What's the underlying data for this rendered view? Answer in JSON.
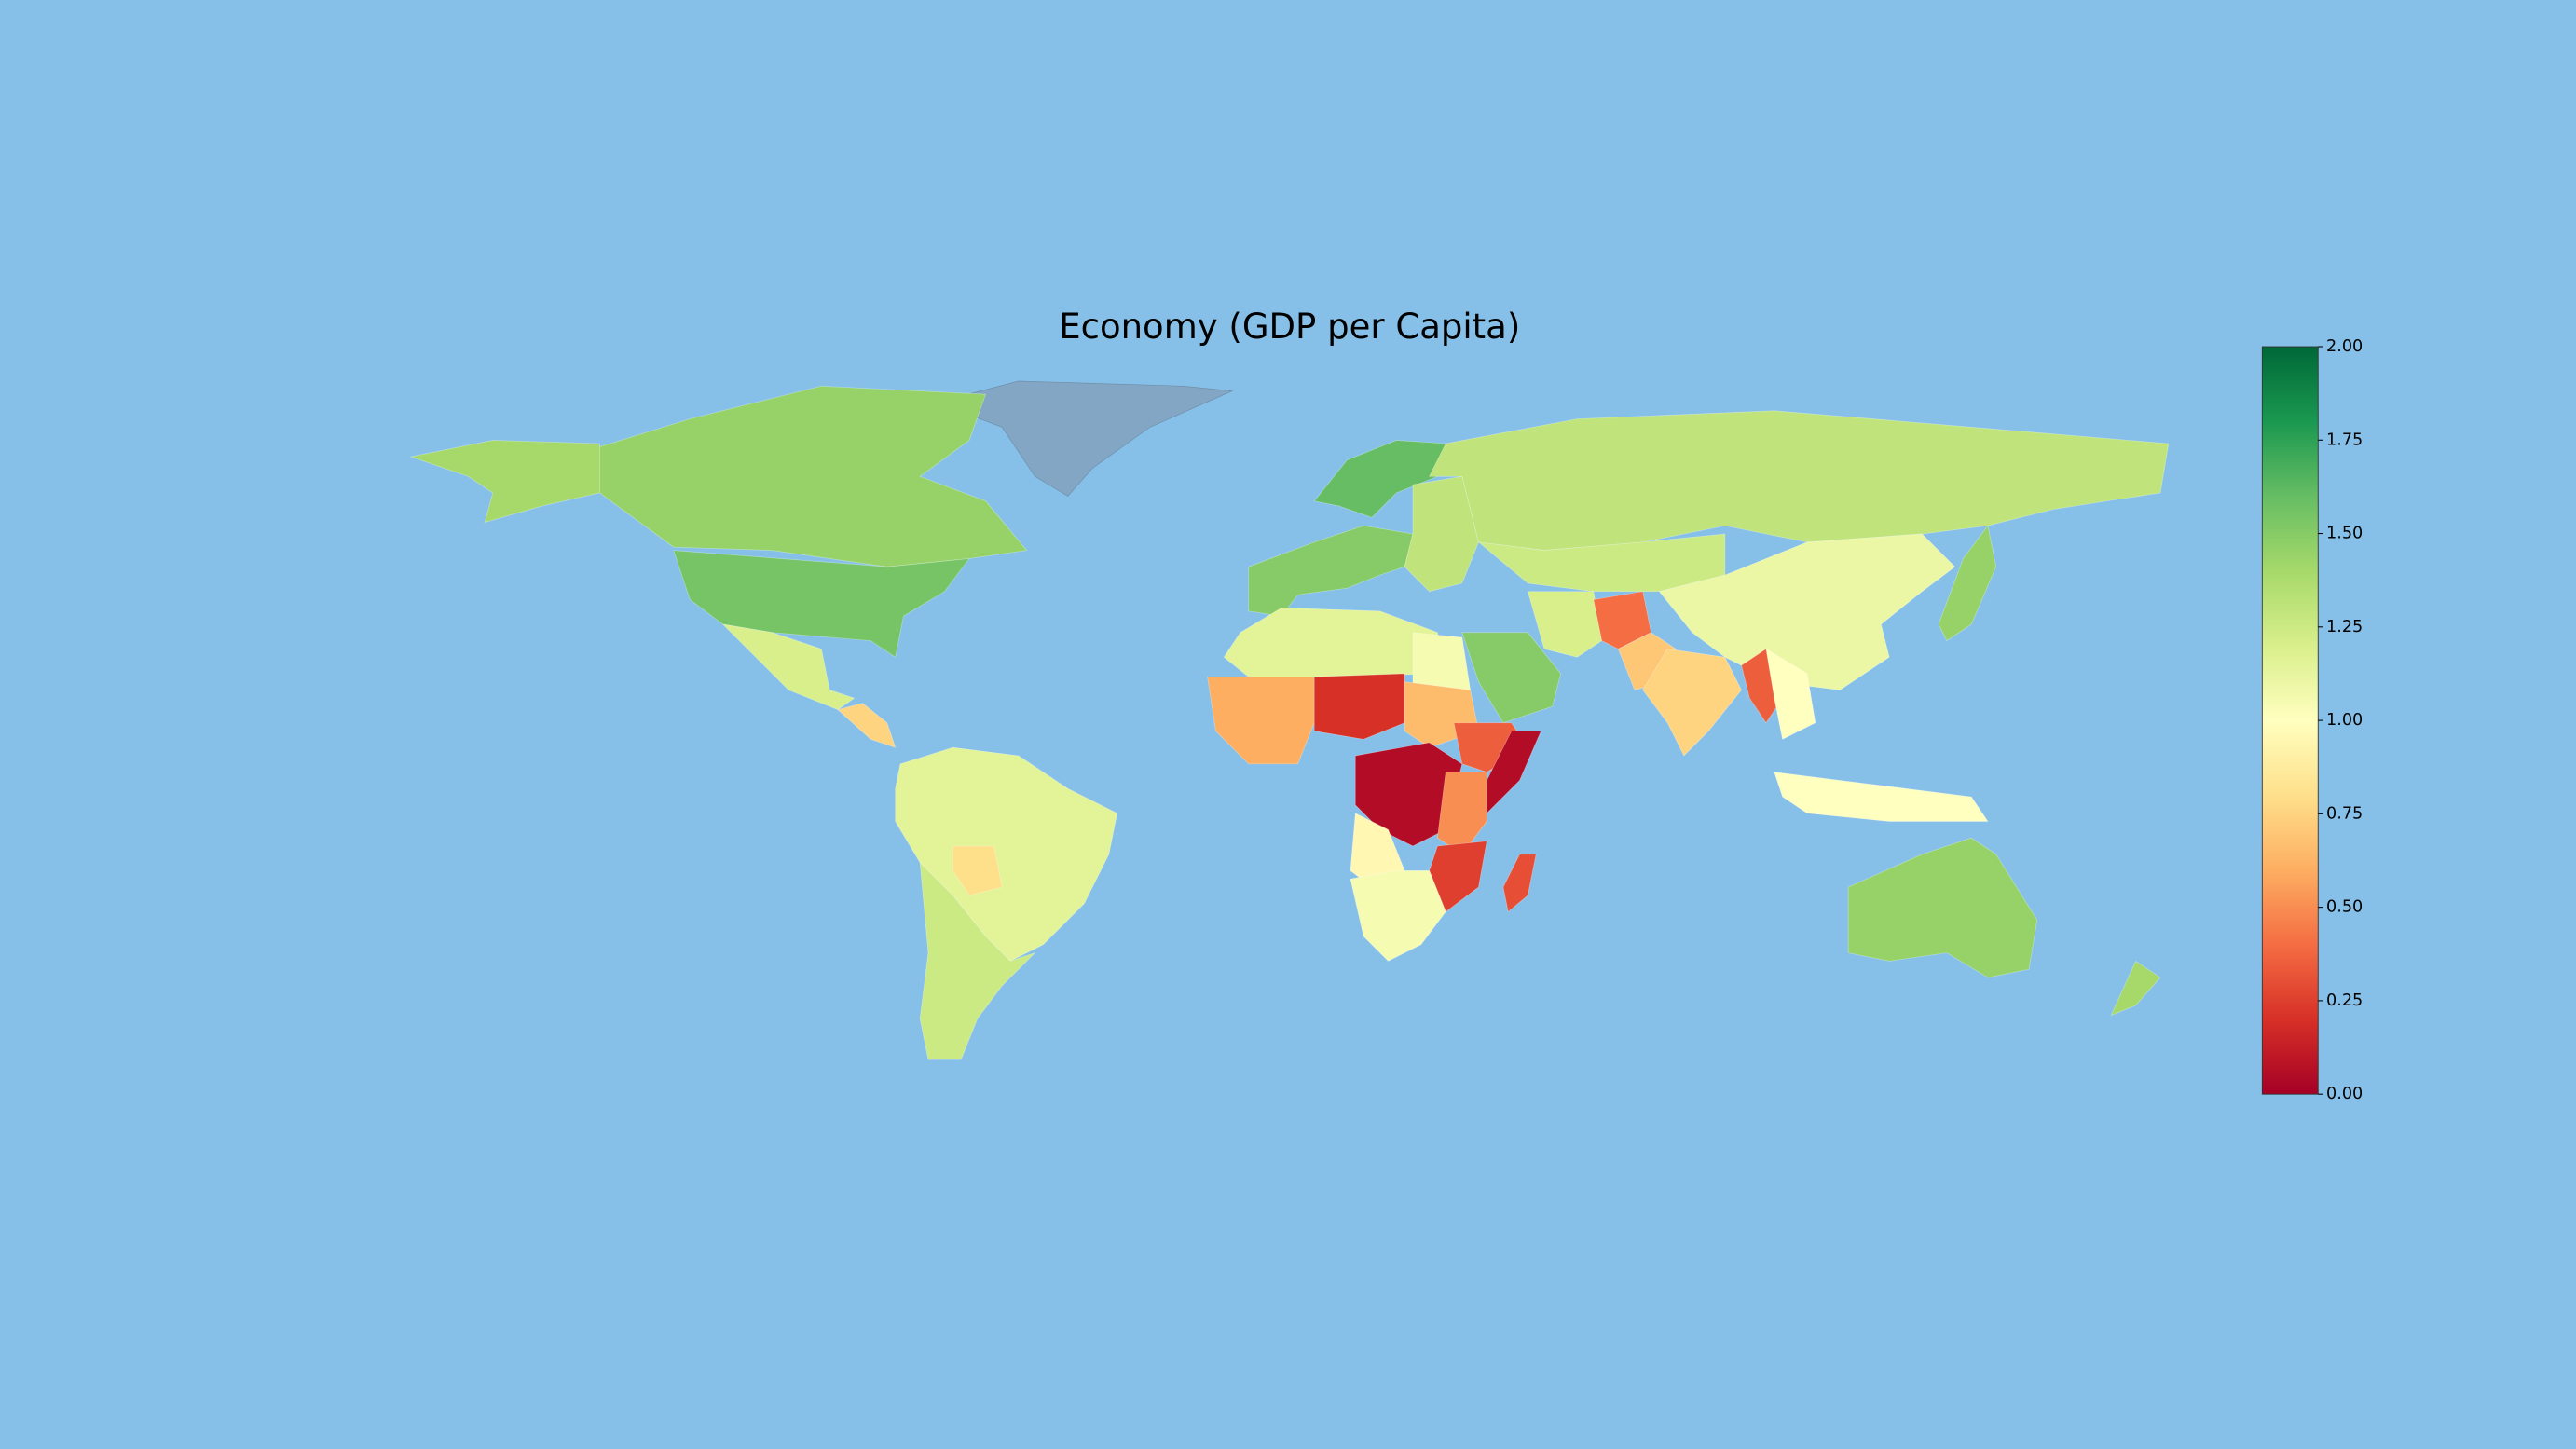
{
  "chart_data": {
    "type": "choropleth",
    "title": "Economy (GDP per Capita)",
    "colorscale": "RdYlGn",
    "values": [
      1.4,
      1.45,
      1.55,
      1.2,
      0.75,
      1.15,
      0.8,
      1.25,
      1.5,
      1.6,
      1.3,
      1.3,
      1.25,
      1.1,
      1.2,
      0.4,
      0.7,
      0.75,
      0.35,
      1.0,
      1.5,
      1.45,
      1.0,
      1.45,
      1.4,
      1.15,
      1.05,
      0.6,
      0.2,
      0.65,
      0.35,
      0.05,
      0.05,
      0.5,
      0.25,
      0.3,
      0.95,
      1.05
    ],
    "clim": [
      0,
      2
    ],
    "cticks": [
      {
        "value": 0,
        "label": "0.00"
      },
      {
        "value": 0.25,
        "label": "0.25"
      },
      {
        "value": 0.5,
        "label": "0.50"
      },
      {
        "value": 0.75,
        "label": "0.75"
      },
      {
        "value": 1,
        "label": "1.00"
      },
      {
        "value": 1.25,
        "label": "1.25"
      },
      {
        "value": 1.5,
        "label": "1.50"
      },
      {
        "value": 1.75,
        "label": "1.75"
      },
      {
        "value": 2,
        "label": "2.00"
      }
    ]
  }
}
